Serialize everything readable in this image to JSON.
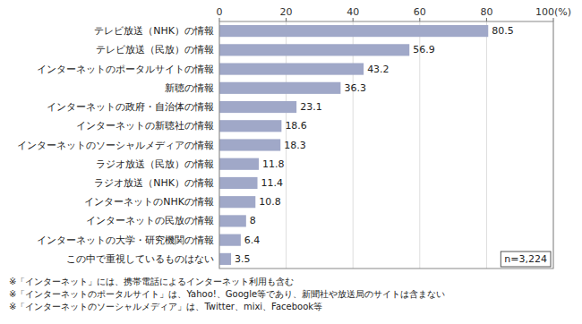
{
  "chart_data": {
    "type": "bar",
    "orientation": "horizontal",
    "categories": [
      "テレビ放送（NHK）の情報",
      "テレビ放送（民放）の情報",
      "インターネットのポータルサイトの情報",
      "新聴の情報",
      "インターネットの政府・自治体の情報",
      "インターネットの新聴社の情報",
      "インターネットのソーシャルメディアの情報",
      "ラジオ放送（民放）の情報",
      "ラジオ放送（NHK）の情報",
      "インターネットのNHKの情報",
      "インターネットの民放の情報",
      "インターネットの大学・研究機関の情報",
      "この中で重視しているものはない"
    ],
    "values": [
      80.5,
      56.9,
      43.2,
      36.3,
      23.1,
      18.6,
      18.3,
      11.8,
      11.4,
      10.8,
      8.0,
      6.4,
      3.5
    ],
    "color": "#a0a8c8",
    "xlim": [
      0,
      100
    ],
    "xticks": [
      0,
      20,
      40,
      60,
      80,
      {
        "value": 100,
        "label": "100(%)"
      }
    ],
    "grid": true,
    "data_labels": true,
    "annotations": [
      "n=3,224",
      "※「インターネット」には、携帯電話によるインターネット利用も含む",
      "※「インターネットのポータルサイト」は、Yahoo!、Google等であり、新聞社や放送局のサイトは含まない",
      "※「インターネットのソーシャルメディア」は、Twitter、mixi、Facebook等"
    ]
  }
}
